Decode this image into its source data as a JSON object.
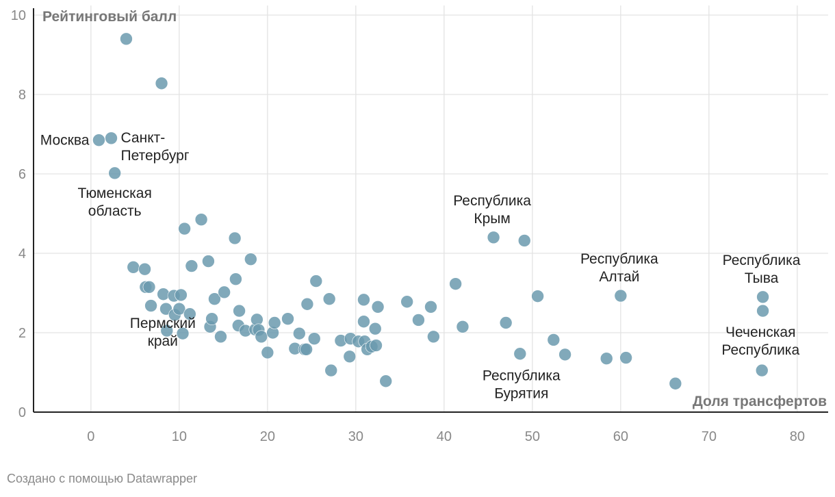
{
  "chart_data": {
    "type": "scatter",
    "title": "",
    "xlabel": "Доля трансфертов",
    "ylabel": "Рейтинговый балл",
    "xlim": [
      -6.5,
      83.5
    ],
    "ylim": [
      0,
      10
    ],
    "x_ticks": [
      0,
      10,
      20,
      30,
      40,
      50,
      60,
      70,
      80
    ],
    "y_ticks": [
      0,
      2,
      4,
      6,
      8,
      10
    ],
    "grid": true,
    "point_color": "#6b9aae",
    "series": [
      {
        "points": [
          {
            "x": 0.9,
            "y": 6.85
          },
          {
            "x": 2.3,
            "y": 6.9
          },
          {
            "x": 2.7,
            "y": 6.02
          },
          {
            "x": 4.0,
            "y": 9.4
          },
          {
            "x": 8.0,
            "y": 8.28
          },
          {
            "x": 4.8,
            "y": 3.65
          },
          {
            "x": 6.1,
            "y": 3.6
          },
          {
            "x": 6.2,
            "y": 3.15
          },
          {
            "x": 6.6,
            "y": 3.15
          },
          {
            "x": 6.8,
            "y": 2.68
          },
          {
            "x": 8.2,
            "y": 2.97
          },
          {
            "x": 8.5,
            "y": 2.6
          },
          {
            "x": 8.6,
            "y": 2.05
          },
          {
            "x": 9.4,
            "y": 2.93
          },
          {
            "x": 9.5,
            "y": 2.45
          },
          {
            "x": 10.0,
            "y": 2.6
          },
          {
            "x": 10.2,
            "y": 2.95
          },
          {
            "x": 10.4,
            "y": 1.98
          },
          {
            "x": 10.6,
            "y": 4.62
          },
          {
            "x": 11.2,
            "y": 2.47
          },
          {
            "x": 11.4,
            "y": 3.68
          },
          {
            "x": 12.5,
            "y": 4.85
          },
          {
            "x": 13.3,
            "y": 3.8
          },
          {
            "x": 13.5,
            "y": 2.15
          },
          {
            "x": 13.7,
            "y": 2.35
          },
          {
            "x": 14.0,
            "y": 2.85
          },
          {
            "x": 14.7,
            "y": 1.9
          },
          {
            "x": 15.1,
            "y": 3.02
          },
          {
            "x": 16.3,
            "y": 4.38
          },
          {
            "x": 16.4,
            "y": 3.35
          },
          {
            "x": 16.7,
            "y": 2.18
          },
          {
            "x": 16.8,
            "y": 2.55
          },
          {
            "x": 17.5,
            "y": 2.05
          },
          {
            "x": 18.1,
            "y": 3.85
          },
          {
            "x": 18.6,
            "y": 2.08
          },
          {
            "x": 18.8,
            "y": 2.33
          },
          {
            "x": 19.0,
            "y": 2.07
          },
          {
            "x": 19.3,
            "y": 1.9
          },
          {
            "x": 20.0,
            "y": 1.5
          },
          {
            "x": 20.6,
            "y": 2.0
          },
          {
            "x": 20.8,
            "y": 2.25
          },
          {
            "x": 22.3,
            "y": 2.35
          },
          {
            "x": 23.1,
            "y": 1.6
          },
          {
            "x": 23.6,
            "y": 1.98
          },
          {
            "x": 24.2,
            "y": 1.58
          },
          {
            "x": 24.4,
            "y": 1.58
          },
          {
            "x": 24.5,
            "y": 2.72
          },
          {
            "x": 25.3,
            "y": 1.85
          },
          {
            "x": 25.5,
            "y": 3.3
          },
          {
            "x": 27.0,
            "y": 2.85
          },
          {
            "x": 27.2,
            "y": 1.05
          },
          {
            "x": 28.3,
            "y": 1.8
          },
          {
            "x": 29.3,
            "y": 1.4
          },
          {
            "x": 29.4,
            "y": 1.85
          },
          {
            "x": 30.3,
            "y": 1.78
          },
          {
            "x": 30.9,
            "y": 2.28
          },
          {
            "x": 30.9,
            "y": 2.83
          },
          {
            "x": 31.0,
            "y": 1.78
          },
          {
            "x": 31.3,
            "y": 1.58
          },
          {
            "x": 31.8,
            "y": 1.65
          },
          {
            "x": 32.2,
            "y": 2.1
          },
          {
            "x": 32.3,
            "y": 1.68
          },
          {
            "x": 32.5,
            "y": 2.65
          },
          {
            "x": 33.4,
            "y": 0.78
          },
          {
            "x": 35.8,
            "y": 2.78
          },
          {
            "x": 37.1,
            "y": 2.32
          },
          {
            "x": 38.5,
            "y": 2.65
          },
          {
            "x": 38.8,
            "y": 1.9
          },
          {
            "x": 41.3,
            "y": 3.23
          },
          {
            "x": 42.1,
            "y": 2.15
          },
          {
            "x": 45.6,
            "y": 4.4
          },
          {
            "x": 47.0,
            "y": 2.25
          },
          {
            "x": 48.6,
            "y": 1.47
          },
          {
            "x": 49.1,
            "y": 4.32
          },
          {
            "x": 50.6,
            "y": 2.92
          },
          {
            "x": 52.4,
            "y": 1.82
          },
          {
            "x": 53.7,
            "y": 1.45
          },
          {
            "x": 58.4,
            "y": 1.35
          },
          {
            "x": 60.0,
            "y": 2.93
          },
          {
            "x": 60.6,
            "y": 1.37
          },
          {
            "x": 66.2,
            "y": 0.72
          },
          {
            "x": 76.1,
            "y": 2.9
          },
          {
            "x": 76.1,
            "y": 2.55
          },
          {
            "x": 76.0,
            "y": 1.05
          }
        ]
      }
    ],
    "annotations": [
      {
        "lines": [
          "Москва"
        ],
        "x": 0.9,
        "y": 6.85,
        "anchor": "end"
      },
      {
        "lines": [
          "Санкт-",
          "Петербург"
        ],
        "x": 2.3,
        "y": 6.9,
        "anchor": "start"
      },
      {
        "lines": [
          "Тюменская",
          "область"
        ],
        "x": 2.7,
        "y": 6.02,
        "anchor": "middle"
      },
      {
        "lines": [
          "Пермский",
          "край"
        ],
        "x": 8.6,
        "y": 2.05,
        "anchor": "middle"
      },
      {
        "lines": [
          "Республика",
          "Крым"
        ],
        "x": 45.6,
        "y": 4.4,
        "anchor": "middle"
      },
      {
        "lines": [
          "Республика",
          "Алтай"
        ],
        "x": 60.0,
        "y": 2.93,
        "anchor": "middle"
      },
      {
        "lines": [
          "Республика",
          "Бурятия"
        ],
        "x": 48.6,
        "y": 1.47,
        "anchor": "middle"
      },
      {
        "lines": [
          "Республика",
          "Тыва"
        ],
        "x": 76.1,
        "y": 2.9,
        "anchor": "middle"
      },
      {
        "lines": [
          "Чеченская",
          "Республика"
        ],
        "x": 76.0,
        "y": 1.05,
        "anchor": "middle"
      }
    ]
  },
  "footer": "Создано с помощью Datawrapper"
}
